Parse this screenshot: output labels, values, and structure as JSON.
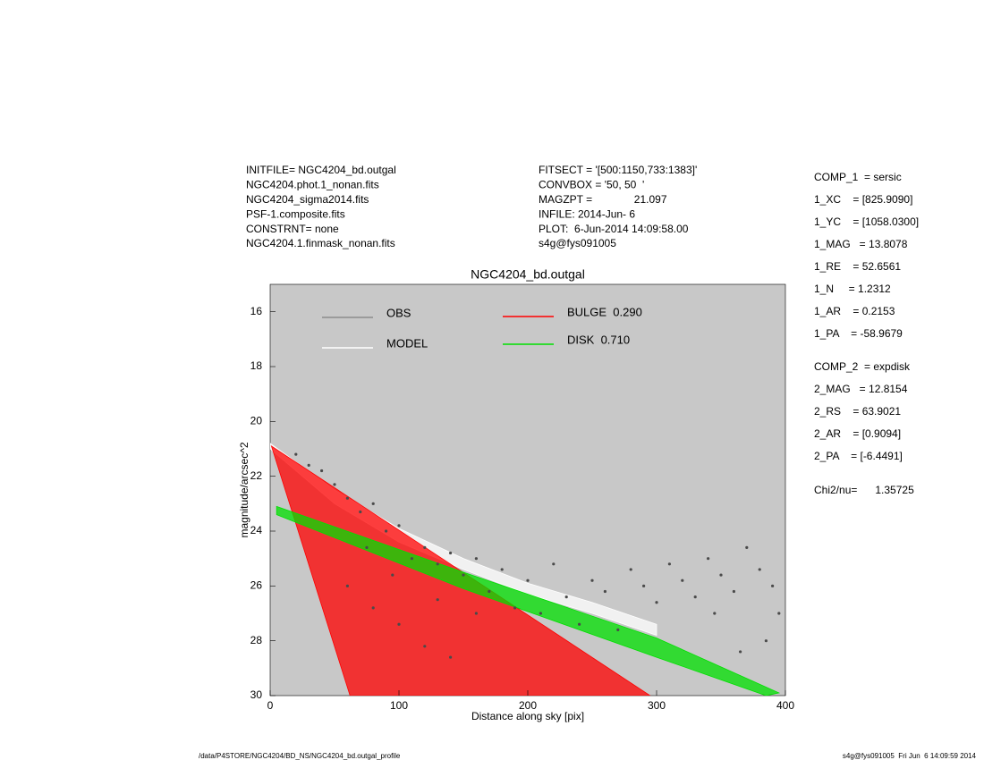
{
  "chart_data": {
    "type": "scatter",
    "title": "NGC4204_bd.outgal",
    "x_label": "Distance along sky [pix]",
    "y_label": "magnitude/arcsec^2",
    "xlim": [
      0,
      400
    ],
    "ylim": [
      30,
      15
    ],
    "xticks": [
      0,
      100,
      200,
      300,
      400
    ],
    "yticks": [
      16,
      18,
      20,
      22,
      24,
      26,
      28,
      30
    ],
    "background": "#c8c8c8",
    "series": [
      {
        "name": "OBS",
        "color": "#4a4a4a",
        "legend_color": "#8c8c8c",
        "kind": "points",
        "x": [
          20,
          30,
          40,
          50,
          60,
          70,
          80,
          90,
          100,
          110,
          120,
          130,
          140,
          150,
          160,
          170,
          180,
          190,
          200,
          210,
          220,
          230,
          240,
          250,
          260,
          270,
          280,
          290,
          300,
          310,
          320,
          330,
          340,
          350,
          360,
          370,
          380,
          390,
          395,
          60,
          80,
          100,
          120,
          140,
          160,
          75,
          95,
          130,
          345,
          365,
          385
        ],
        "values": [
          21.2,
          21.6,
          21.8,
          22.3,
          22.8,
          23.3,
          23.0,
          24.0,
          23.8,
          25.0,
          24.6,
          25.2,
          24.8,
          25.6,
          25.0,
          26.2,
          25.4,
          26.8,
          25.8,
          27.0,
          25.2,
          26.4,
          27.4,
          25.8,
          26.2,
          27.6,
          25.4,
          26.0,
          26.6,
          25.2,
          25.8,
          26.4,
          25.0,
          25.6,
          26.2,
          24.6,
          25.4,
          26.0,
          27.0,
          26.0,
          26.8,
          27.4,
          28.2,
          28.6,
          27.0,
          24.6,
          25.6,
          26.5,
          27.0,
          28.4,
          28.0
        ]
      },
      {
        "name": "MODEL",
        "color": "#ffffff",
        "kind": "band",
        "x": [
          0,
          50,
          100,
          150,
          200,
          250,
          300,
          300,
          250,
          200,
          150,
          100,
          50,
          0
        ],
        "values": [
          20.8,
          22.5,
          23.9,
          25.0,
          25.9,
          26.6,
          27.4,
          27.8,
          27.0,
          26.3,
          25.4,
          24.4,
          23.0,
          21.0
        ]
      },
      {
        "name": "BULGE  0.290",
        "color": "#ff0000",
        "kind": "band",
        "x": [
          1,
          62,
          295
        ],
        "values": [
          20.9,
          30,
          30
        ]
      },
      {
        "name": "DISK  0.710",
        "color": "#00e000",
        "kind": "band",
        "x": [
          5,
          150,
          300,
          395,
          385,
          300,
          150,
          5
        ],
        "values": [
          23.1,
          25.5,
          27.9,
          29.9,
          30,
          28.6,
          26.1,
          23.4
        ]
      }
    ],
    "header_left": [
      "INITFILE= NGC4204_bd.outgal",
      "NGC4204.phot.1_nonan.fits",
      "NGC4204_sigma2014.fits",
      "PSF-1.composite.fits",
      "CONSTRNT= none",
      "NGC4204.1.finmask_nonan.fits"
    ],
    "header_middle": [
      "FITSECT = '[500:1150,733:1383]'",
      "CONVBOX = '50, 50  '",
      "MAGZPT =              21.097",
      "INFILE: 2014-Jun- 6",
      "PLOT:  6-Jun-2014 14:09:58.00",
      "s4g@fys091005"
    ],
    "parameters": [
      "COMP_1  = sersic",
      "1_XC    = [825.9090]",
      "1_YC    = [1058.0300]",
      "1_MAG   = 13.8078",
      "1_RE    = 52.6561",
      "1_N     = 1.2312",
      "1_AR    = 0.2153",
      "1_PA    = -58.9679",
      "COMP_2  = expdisk",
      "2_MAG   = 12.8154",
      "2_RS    = 63.9021",
      "2_AR    = [0.9094]",
      "2_PA    = [-6.4491]",
      "Chi2/nu=      1.35725"
    ],
    "footer_left": "/data/P4STORE/NGC4204/BD_NS/NGC4204_bd.outgal_profile",
    "footer_right": "s4g@fys091005  Fri Jun  6 14:09:59 2014"
  }
}
